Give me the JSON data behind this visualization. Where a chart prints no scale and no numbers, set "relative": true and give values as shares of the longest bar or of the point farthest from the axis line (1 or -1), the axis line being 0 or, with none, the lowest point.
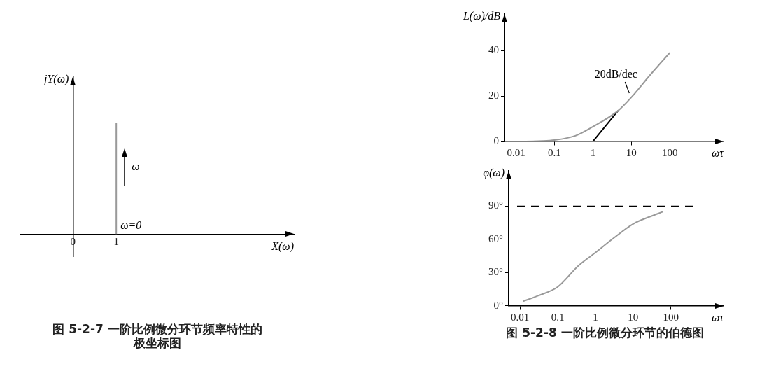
{
  "chart_data": [
    {
      "type": "line",
      "title": "图 5-2-7 一阶比例微分环节频率特性的极坐标图",
      "xlabel": "X(ω)",
      "ylabel": "jY(ω)",
      "relative": true,
      "xlim": [
        -1.2,
        5.1
      ],
      "xticks": [
        0,
        1
      ],
      "series": [
        {
          "color": "#999999",
          "x": [
            1,
            1
          ],
          "values": [
            0,
            1
          ]
        }
      ],
      "annotations": [
        "ω=0",
        "ω"
      ]
    },
    {
      "type": "line",
      "xlabel": "ωτ",
      "ylabel": "L(ω)/dB",
      "log": "x",
      "xlim": [
        0.005,
        2500
      ],
      "xticks": [
        0.01,
        0.1,
        1,
        10,
        100
      ],
      "ylim": [
        0,
        56
      ],
      "yticks": [
        0,
        20,
        40
      ],
      "series": [
        {
          "color": "#999999",
          "x": [
            0.005,
            0.01,
            0.05,
            0.1,
            0.35,
            1,
            4.5,
            10,
            30,
            100
          ],
          "values": [
            0,
            0,
            0.2,
            0.6,
            2.5,
            6.5,
            13.5,
            19.4,
            29,
            39
          ]
        },
        {
          "color": "#000000",
          "x": [
            1,
            4.5
          ],
          "values": [
            0,
            13.5
          ]
        }
      ],
      "annotations": [
        {
          "text": "20dB/dec",
          "x": 10,
          "y": 20
        }
      ]
    },
    {
      "type": "line",
      "title": "图 5-2-8 一阶比例微分环节的伯德图",
      "xlabel": "ωτ",
      "ylabel": "φ(ω)",
      "log": "x",
      "xlim": [
        0.005,
        2500
      ],
      "xticks": [
        0.01,
        0.1,
        1,
        10,
        100
      ],
      "ylim": [
        0,
        122
      ],
      "yticks": [
        {
          "value": 0,
          "label": "0°"
        },
        {
          "value": 30,
          "label": "30°"
        },
        {
          "value": 60,
          "label": "60°"
        },
        {
          "value": 90,
          "label": "90°"
        }
      ],
      "series": [
        {
          "color": "#999999",
          "x": [
            0.012,
            0.03,
            0.1,
            0.35,
            1,
            3,
            10,
            30,
            62
          ],
          "values": [
            4,
            9,
            17,
            36,
            48,
            61,
            74,
            81,
            85
          ]
        }
      ],
      "ref_lines": [
        {
          "axis": "y",
          "value": 90,
          "line_style": "dashed",
          "color": "#000000"
        }
      ]
    }
  ]
}
